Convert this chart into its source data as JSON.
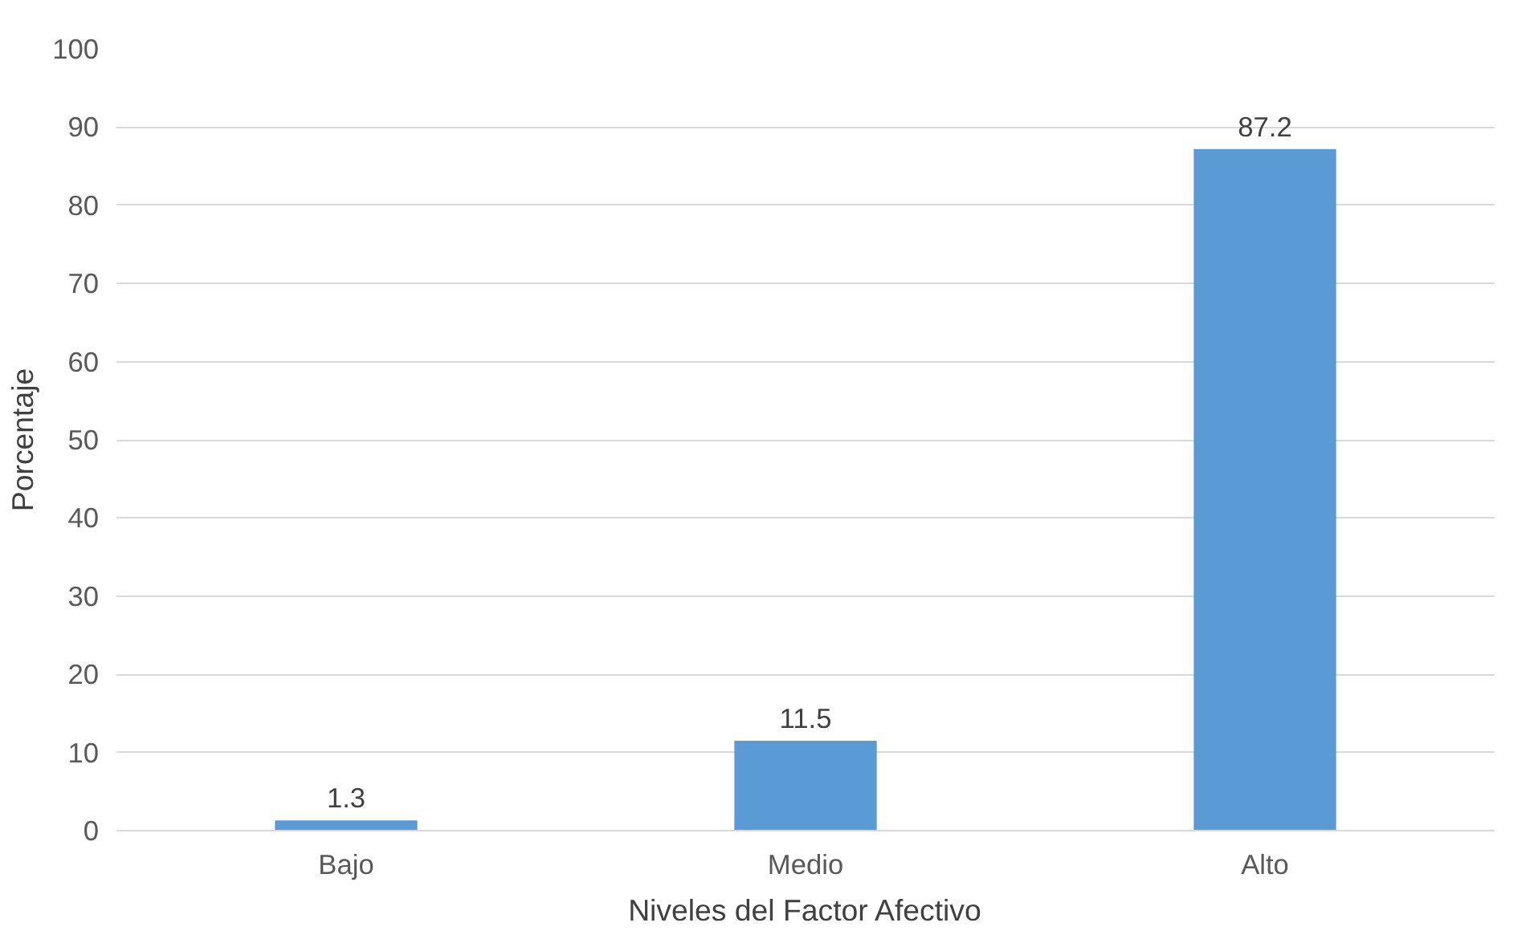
{
  "chart_data": {
    "type": "bar",
    "xlabel": "Niveles del Factor Afectivo",
    "ylabel": "Porcentaje",
    "categories": [
      "Bajo",
      "Medio",
      "Alto"
    ],
    "values": [
      1.3,
      11.5,
      87.2
    ],
    "color": "#5b9bd5",
    "ylim": [
      0,
      100
    ],
    "yticks": [
      0,
      10,
      20,
      30,
      40,
      50,
      60,
      70,
      80,
      90,
      100
    ],
    "grid": "y",
    "data_labels": true
  }
}
